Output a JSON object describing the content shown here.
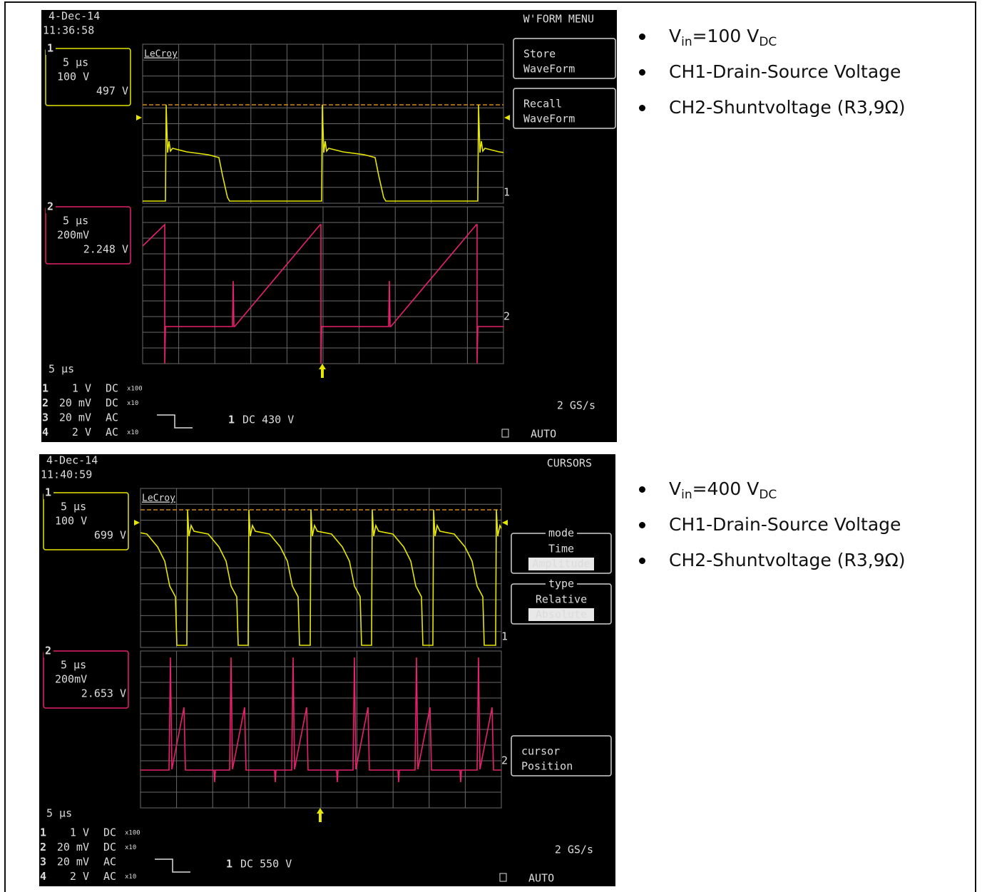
{
  "scopes": [
    {
      "date": "4-Dec-14",
      "time": "11:36:58",
      "menu_title": "W'FORM MENU",
      "logo": "LeCroy",
      "buttons": [
        {
          "lines": [
            "Store",
            "WaveForm"
          ]
        },
        {
          "lines": [
            "Recall",
            "WaveForm"
          ]
        }
      ],
      "channel_boxes": [
        {
          "number": "1",
          "timebase": "5 μs",
          "scale": "100 V",
          "value": "497 V"
        },
        {
          "number": "2",
          "timebase": "5 μs",
          "scale": "200mV",
          "value": "2.248 V"
        }
      ],
      "trace_markers": [
        "1",
        "2"
      ],
      "timebase": "5 μs",
      "channels": [
        {
          "number": "1",
          "scale": "1 V",
          "coupling": "DC",
          "probe": "x100"
        },
        {
          "number": "2",
          "scale": "20 mV",
          "coupling": "DC",
          "probe": "x10"
        },
        {
          "number": "3",
          "scale": "20 mV",
          "coupling": "AC"
        },
        {
          "number": "4",
          "scale": "2 V",
          "coupling": "AC",
          "probe": "x10"
        }
      ],
      "trigger": {
        "channel": "1",
        "setting": "DC 430 V"
      },
      "sample_rate": "2 GS/s",
      "mode": "AUTO"
    },
    {
      "date": "4-Dec-14",
      "time": "11:40:59",
      "menu_title": "CURSORS",
      "logo": "LeCroy",
      "buttons": [
        {
          "label": "mode",
          "lines": [
            "Time",
            "Amplitude"
          ],
          "selected": 1
        },
        {
          "label": "type",
          "lines": [
            "Relative",
            "Absolute"
          ],
          "selected": 1
        },
        {
          "lines": [
            "cursor",
            "Position"
          ]
        }
      ],
      "channel_boxes": [
        {
          "number": "1",
          "timebase": "5 μs",
          "scale": "100 V",
          "value": "699 V"
        },
        {
          "number": "2",
          "timebase": "5 μs",
          "scale": "200mV",
          "value": "2.653 V"
        }
      ],
      "trace_markers": [
        "1",
        "2"
      ],
      "timebase": "5 μs",
      "channels": [
        {
          "number": "1",
          "scale": "1 V",
          "coupling": "DC",
          "probe": "x100"
        },
        {
          "number": "2",
          "scale": "20 mV",
          "coupling": "DC",
          "probe": "x10"
        },
        {
          "number": "3",
          "scale": "20 mV",
          "coupling": "AC"
        },
        {
          "number": "4",
          "scale": "2 V",
          "coupling": "AC",
          "probe": "x10"
        }
      ],
      "trigger": {
        "channel": "1",
        "setting": "DC 550 V"
      },
      "sample_rate": "2 GS/s",
      "mode": "AUTO"
    }
  ],
  "notes": [
    [
      [
        {
          "text": "V"
        },
        {
          "text": "in",
          "sub": true
        },
        {
          "text": "=100 V"
        },
        {
          "text": "DC",
          "sub": true
        }
      ],
      [
        {
          "text": "CH1-Drain-Source Voltage"
        }
      ],
      [
        {
          "text": "CH2-Shuntvoltage (R3,9Ω)"
        }
      ]
    ],
    [
      [
        {
          "text": "V"
        },
        {
          "text": "in",
          "sub": true
        },
        {
          "text": "=400 V"
        },
        {
          "text": "DC",
          "sub": true
        }
      ],
      [
        {
          "text": "CH1-Drain-Source Voltage"
        }
      ],
      [
        {
          "text": "CH2-Shuntvoltage (R3,9Ω)"
        }
      ]
    ]
  ]
}
